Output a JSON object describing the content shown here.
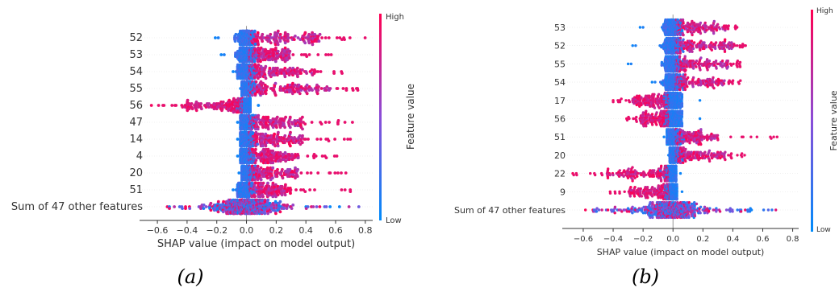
{
  "colorbar": {
    "high": "High",
    "low": "Low",
    "label": "Feature value",
    "color_low": "#008bfb",
    "color_high": "#ff0052"
  },
  "chart_data": [
    {
      "id": "a",
      "type": "scatter",
      "subtype": "shap-beeswarm",
      "caption": "(a)",
      "xlabel": "SHAP value (impact on model output)",
      "xlim": [
        -0.72,
        0.85
      ],
      "xticks": [
        -0.6,
        -0.4,
        -0.2,
        0.0,
        0.2,
        0.4,
        0.6,
        0.8
      ],
      "xtick_labels": [
        "−0.6",
        "−0.4",
        "−0.2",
        "0.0",
        "0.2",
        "0.4",
        "0.6",
        "0.8"
      ],
      "features": [
        {
          "name": "52",
          "min": -0.21,
          "max": 0.8,
          "neg_end": -0.1,
          "pos_end": 0.5,
          "sign": 1
        },
        {
          "name": "53",
          "min": -0.17,
          "max": 0.62,
          "neg_end": -0.08,
          "pos_end": 0.3,
          "sign": 1
        },
        {
          "name": "54",
          "min": -0.09,
          "max": 0.66,
          "neg_end": -0.06,
          "pos_end": 0.45,
          "sign": 1
        },
        {
          "name": "55",
          "min": -0.04,
          "max": 0.75,
          "neg_end": -0.03,
          "pos_end": 0.6,
          "sign": 1
        },
        {
          "name": "56",
          "min": -0.64,
          "max": 0.08,
          "neg_end": -0.1,
          "pos_end": 0.05,
          "sign": -1
        },
        {
          "name": "47",
          "min": -0.06,
          "max": 0.73,
          "neg_end": -0.04,
          "pos_end": 0.4,
          "sign": 1
        },
        {
          "name": "14",
          "min": -0.06,
          "max": 0.7,
          "neg_end": -0.04,
          "pos_end": 0.4,
          "sign": 1
        },
        {
          "name": "4",
          "min": -0.06,
          "max": 0.67,
          "neg_end": -0.04,
          "pos_end": 0.35,
          "sign": 1
        },
        {
          "name": "20",
          "min": -0.05,
          "max": 0.72,
          "neg_end": -0.03,
          "pos_end": 0.35,
          "sign": 1
        },
        {
          "name": "51",
          "min": -0.09,
          "max": 0.7,
          "neg_end": -0.06,
          "pos_end": 0.3,
          "sign": 1
        },
        {
          "name": "Sum of 47 other features",
          "min": -0.43,
          "max": 0.76,
          "neg_end": -0.25,
          "pos_end": 0.55,
          "sign": 0
        }
      ]
    },
    {
      "id": "b",
      "type": "scatter",
      "subtype": "shap-beeswarm",
      "caption": "(b)",
      "xlabel": "SHAP value (impact on model output)",
      "xlim": [
        -0.74,
        0.84
      ],
      "xticks": [
        -0.6,
        -0.4,
        -0.2,
        0.0,
        0.2,
        0.4,
        0.6,
        0.8
      ],
      "xtick_labels": [
        "−0.6",
        "−0.4",
        "−0.2",
        "0.0",
        "0.2",
        "0.4",
        "0.6",
        "0.8"
      ],
      "features": [
        {
          "name": "53",
          "min": -0.22,
          "max": 0.43,
          "neg_end": -0.18,
          "pos_end": 0.35,
          "sign": 1
        },
        {
          "name": "52",
          "min": -0.27,
          "max": 0.49,
          "neg_end": -0.2,
          "pos_end": 0.4,
          "sign": 1
        },
        {
          "name": "55",
          "min": -0.3,
          "max": 0.45,
          "neg_end": -0.2,
          "pos_end": 0.4,
          "sign": 1
        },
        {
          "name": "54",
          "min": -0.14,
          "max": 0.46,
          "neg_end": -0.1,
          "pos_end": 0.35,
          "sign": 1
        },
        {
          "name": "17",
          "min": -0.4,
          "max": 0.18,
          "neg_end": -0.25,
          "pos_end": 0.12,
          "sign": -1
        },
        {
          "name": "56",
          "min": -0.31,
          "max": 0.18,
          "neg_end": -0.15,
          "pos_end": 0.12,
          "sign": -1
        },
        {
          "name": "51",
          "min": -0.06,
          "max": 0.73,
          "neg_end": -0.04,
          "pos_end": 0.3,
          "sign": 1
        },
        {
          "name": "20",
          "min": -0.03,
          "max": 0.5,
          "neg_end": -0.02,
          "pos_end": 0.35,
          "sign": 1
        },
        {
          "name": "22",
          "min": -0.67,
          "max": 0.05,
          "neg_end": -0.25,
          "pos_end": 0.04,
          "sign": -1
        },
        {
          "name": "9",
          "min": -0.42,
          "max": 0.06,
          "neg_end": -0.2,
          "pos_end": 0.05,
          "sign": -1
        },
        {
          "name": "Sum of 47 other features",
          "min": -0.65,
          "max": 0.76,
          "neg_end": -0.4,
          "pos_end": 0.55,
          "sign": 0
        }
      ]
    }
  ]
}
